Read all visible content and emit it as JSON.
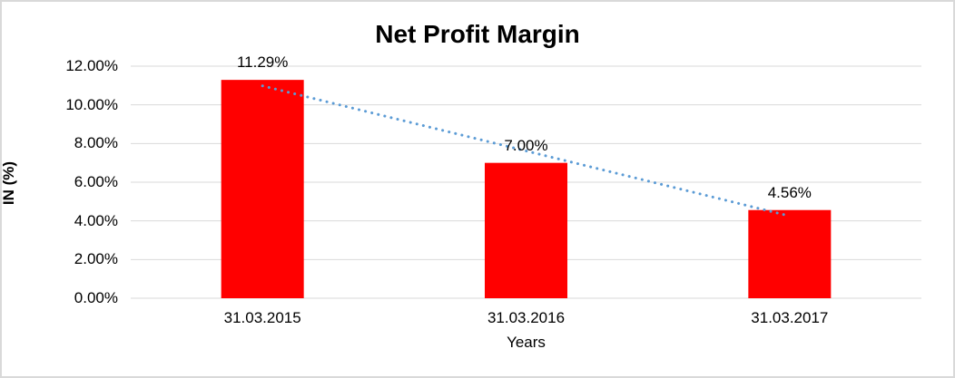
{
  "chart_data": {
    "type": "bar",
    "title": "Net Profit Margin",
    "xlabel": "Years",
    "ylabel": "IN (%)",
    "categories": [
      "31.03.2015",
      "31.03.2016",
      "31.03.2017"
    ],
    "values": [
      11.29,
      7.0,
      4.56
    ],
    "value_labels": [
      "11.29%",
      "7.00%",
      "4.56%"
    ],
    "y_ticks": [
      0,
      2,
      4,
      6,
      8,
      10,
      12
    ],
    "y_tick_labels": [
      "0.00%",
      "2.00%",
      "4.00%",
      "6.00%",
      "8.00%",
      "10.00%",
      "12.00%"
    ],
    "ylim": [
      0,
      12
    ],
    "grid": true,
    "legend_position": "none",
    "trendline": {
      "type": "linear",
      "style": "dotted"
    },
    "colors": {
      "bar": "#FF0000",
      "trendline": "#5B9BD5",
      "gridline": "#D9D9D9",
      "axis_line": "#D9D9D9",
      "text": "#000000",
      "border": "#D9D9D9",
      "background": "#FFFFFF"
    }
  }
}
